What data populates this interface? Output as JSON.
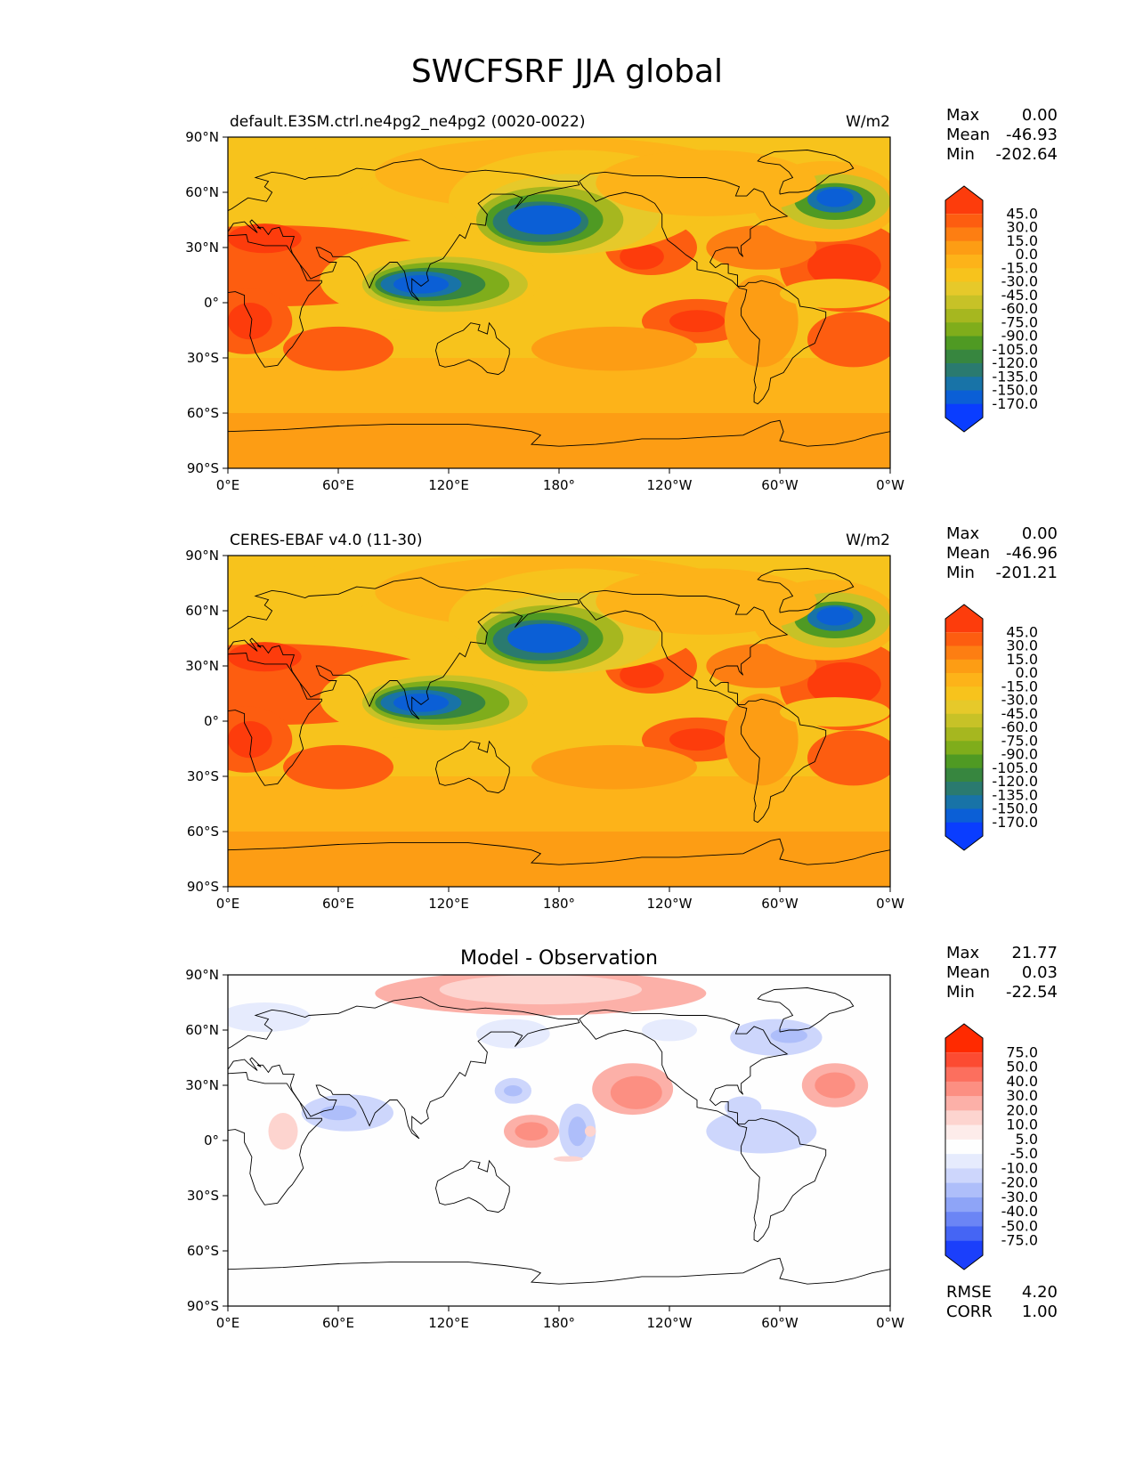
{
  "figure_title": "SWCFSRF JJA global",
  "coastline_color": "#000000",
  "chart_data": [
    {
      "type": "heatmap",
      "title": "default.E3SM.ctrl.ne4pg2_ne4pg2 (0020-0022)",
      "units": "W/m2",
      "stats": {
        "max_label": "Max",
        "max": "0.00",
        "mean_label": "Mean",
        "mean": "-46.93",
        "min_label": "Min",
        "min": "-202.64"
      },
      "x_ticks": [
        "0°E",
        "60°E",
        "120°E",
        "180°",
        "120°W",
        "60°W",
        "0°W"
      ],
      "y_ticks": [
        "90°N",
        "60°N",
        "30°N",
        "0°",
        "30°S",
        "60°S",
        "90°S"
      ],
      "xlim": [
        0,
        360
      ],
      "ylim": [
        -90,
        90
      ],
      "colorbar_levels": [
        "45.0",
        "30.0",
        "15.0",
        "0.0",
        "-15.0",
        "-30.0",
        "-45.0",
        "-60.0",
        "-75.0",
        "-90.0",
        "-105.0",
        "-120.0",
        "-135.0",
        "-150.0",
        "-170.0"
      ],
      "colorbar_colors": [
        "#fd3c0c",
        "#fd5d10",
        "#fd7e12",
        "#fd9d14",
        "#fdb319",
        "#f7c31c",
        "#e6c92a",
        "#c7c227",
        "#a6b71f",
        "#7fad1b",
        "#4f9a23",
        "#37863f",
        "#2a7a6f",
        "#1873a7",
        "#0b5fd6",
        "#0a3dff"
      ]
    },
    {
      "type": "heatmap",
      "title": "CERES-EBAF v4.0 (11-30)",
      "units": "W/m2",
      "stats": {
        "max_label": "Max",
        "max": "0.00",
        "mean_label": "Mean",
        "mean": "-46.96",
        "min_label": "Min",
        "min": "-201.21"
      },
      "x_ticks": [
        "0°E",
        "60°E",
        "120°E",
        "180°",
        "120°W",
        "60°W",
        "0°W"
      ],
      "y_ticks": [
        "90°N",
        "60°N",
        "30°N",
        "0°",
        "30°S",
        "60°S",
        "90°S"
      ],
      "xlim": [
        0,
        360
      ],
      "ylim": [
        -90,
        90
      ],
      "colorbar_levels": [
        "45.0",
        "30.0",
        "15.0",
        "0.0",
        "-15.0",
        "-30.0",
        "-45.0",
        "-60.0",
        "-75.0",
        "-90.0",
        "-105.0",
        "-120.0",
        "-135.0",
        "-150.0",
        "-170.0"
      ],
      "colorbar_colors": [
        "#fd3c0c",
        "#fd5d10",
        "#fd7e12",
        "#fd9d14",
        "#fdb319",
        "#f7c31c",
        "#e6c92a",
        "#c7c227",
        "#a6b71f",
        "#7fad1b",
        "#4f9a23",
        "#37863f",
        "#2a7a6f",
        "#1873a7",
        "#0b5fd6",
        "#0a3dff"
      ]
    },
    {
      "type": "heatmap",
      "title": "Model - Observation",
      "units": "",
      "stats": {
        "max_label": "Max",
        "max": "21.77",
        "mean_label": "Mean",
        "mean": "0.03",
        "min_label": "Min",
        "min": "-22.54"
      },
      "metrics": {
        "rmse_label": "RMSE",
        "rmse": "4.20",
        "corr_label": "CORR",
        "corr": "1.00"
      },
      "x_ticks": [
        "0°E",
        "60°E",
        "120°E",
        "180°",
        "120°W",
        "60°W",
        "0°W"
      ],
      "y_ticks": [
        "90°N",
        "60°N",
        "30°N",
        "0°",
        "30°S",
        "60°S",
        "90°S"
      ],
      "xlim": [
        0,
        360
      ],
      "ylim": [
        -90,
        90
      ],
      "colorbar_levels": [
        "75.0",
        "50.0",
        "40.0",
        "30.0",
        "20.0",
        "10.0",
        "5.0",
        "-5.0",
        "-10.0",
        "-20.0",
        "-30.0",
        "-40.0",
        "-50.0",
        "-75.0"
      ],
      "colorbar_colors": [
        "#ff2a00",
        "#fc4b32",
        "#fc6f5e",
        "#fc8f82",
        "#fcb0a8",
        "#fdd4cf",
        "#fdecea",
        "#fefefe",
        "#e6ebfd",
        "#cdd6fc",
        "#aebefa",
        "#8ea4f7",
        "#6b85f5",
        "#4565f4",
        "#1b3ffb"
      ]
    }
  ]
}
